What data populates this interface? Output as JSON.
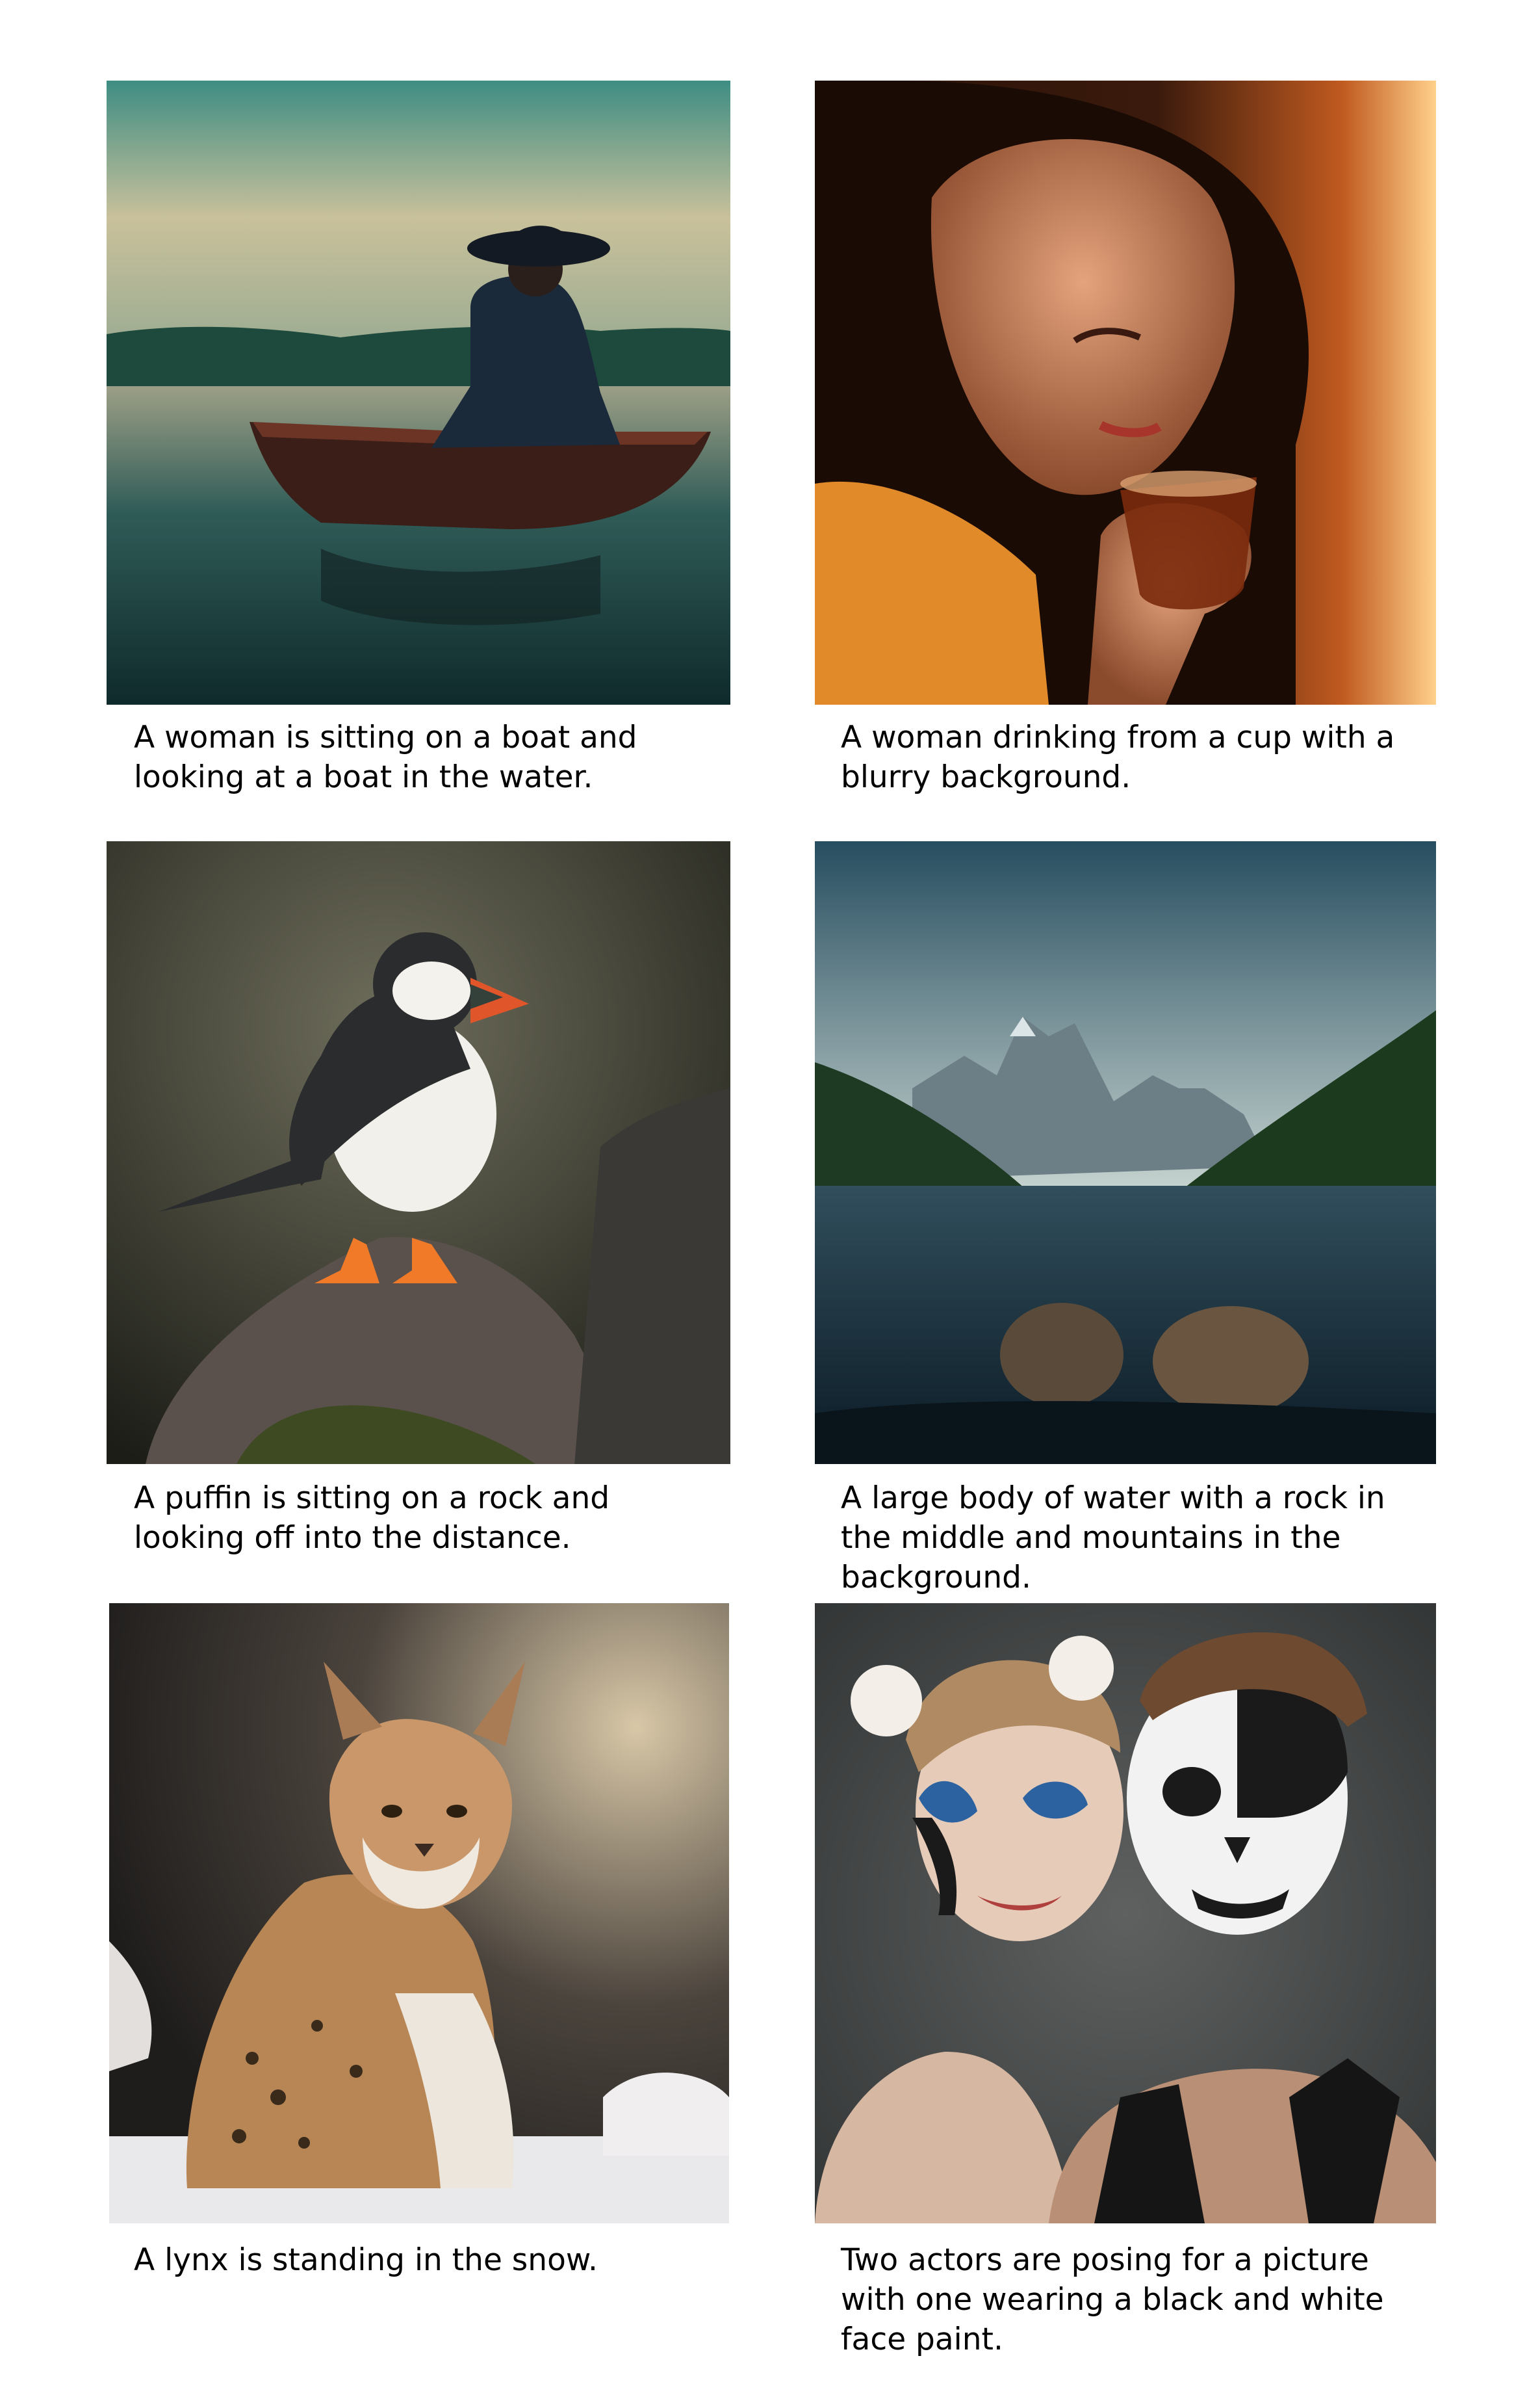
{
  "panels": [
    {
      "caption": "A woman is sitting on a boat and looking at a boat in the water."
    },
    {
      "caption": "A woman drinking from a cup with a blurry background."
    },
    {
      "caption": "A puffin is sitting on a rock and looking off into the distance."
    },
    {
      "caption": "A large body of water with a rock in the middle and mountains in the background."
    },
    {
      "caption": "A lynx is standing in the snow."
    },
    {
      "caption": "Two actors are posing for a picture with one wearing a black and white face paint."
    }
  ]
}
